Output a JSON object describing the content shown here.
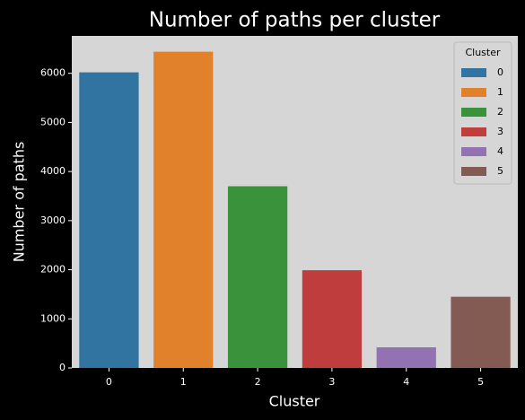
{
  "chart_data": {
    "type": "bar",
    "title": "Number of paths per cluster",
    "x_label": "Cluster",
    "y_label": "Number of paths",
    "categories": [
      "0",
      "1",
      "2",
      "3",
      "4",
      "5"
    ],
    "values": [
      6020,
      6440,
      3700,
      1990,
      420,
      1450
    ],
    "colors": [
      "#3274a1",
      "#e1812c",
      "#3a923a",
      "#c03d3e",
      "#9372b2",
      "#845b53"
    ],
    "ylim": [
      0,
      6762
    ],
    "yticks": [
      0,
      1000,
      2000,
      3000,
      4000,
      5000,
      6000
    ],
    "legend_title": "Cluster",
    "legend": "upper right"
  }
}
